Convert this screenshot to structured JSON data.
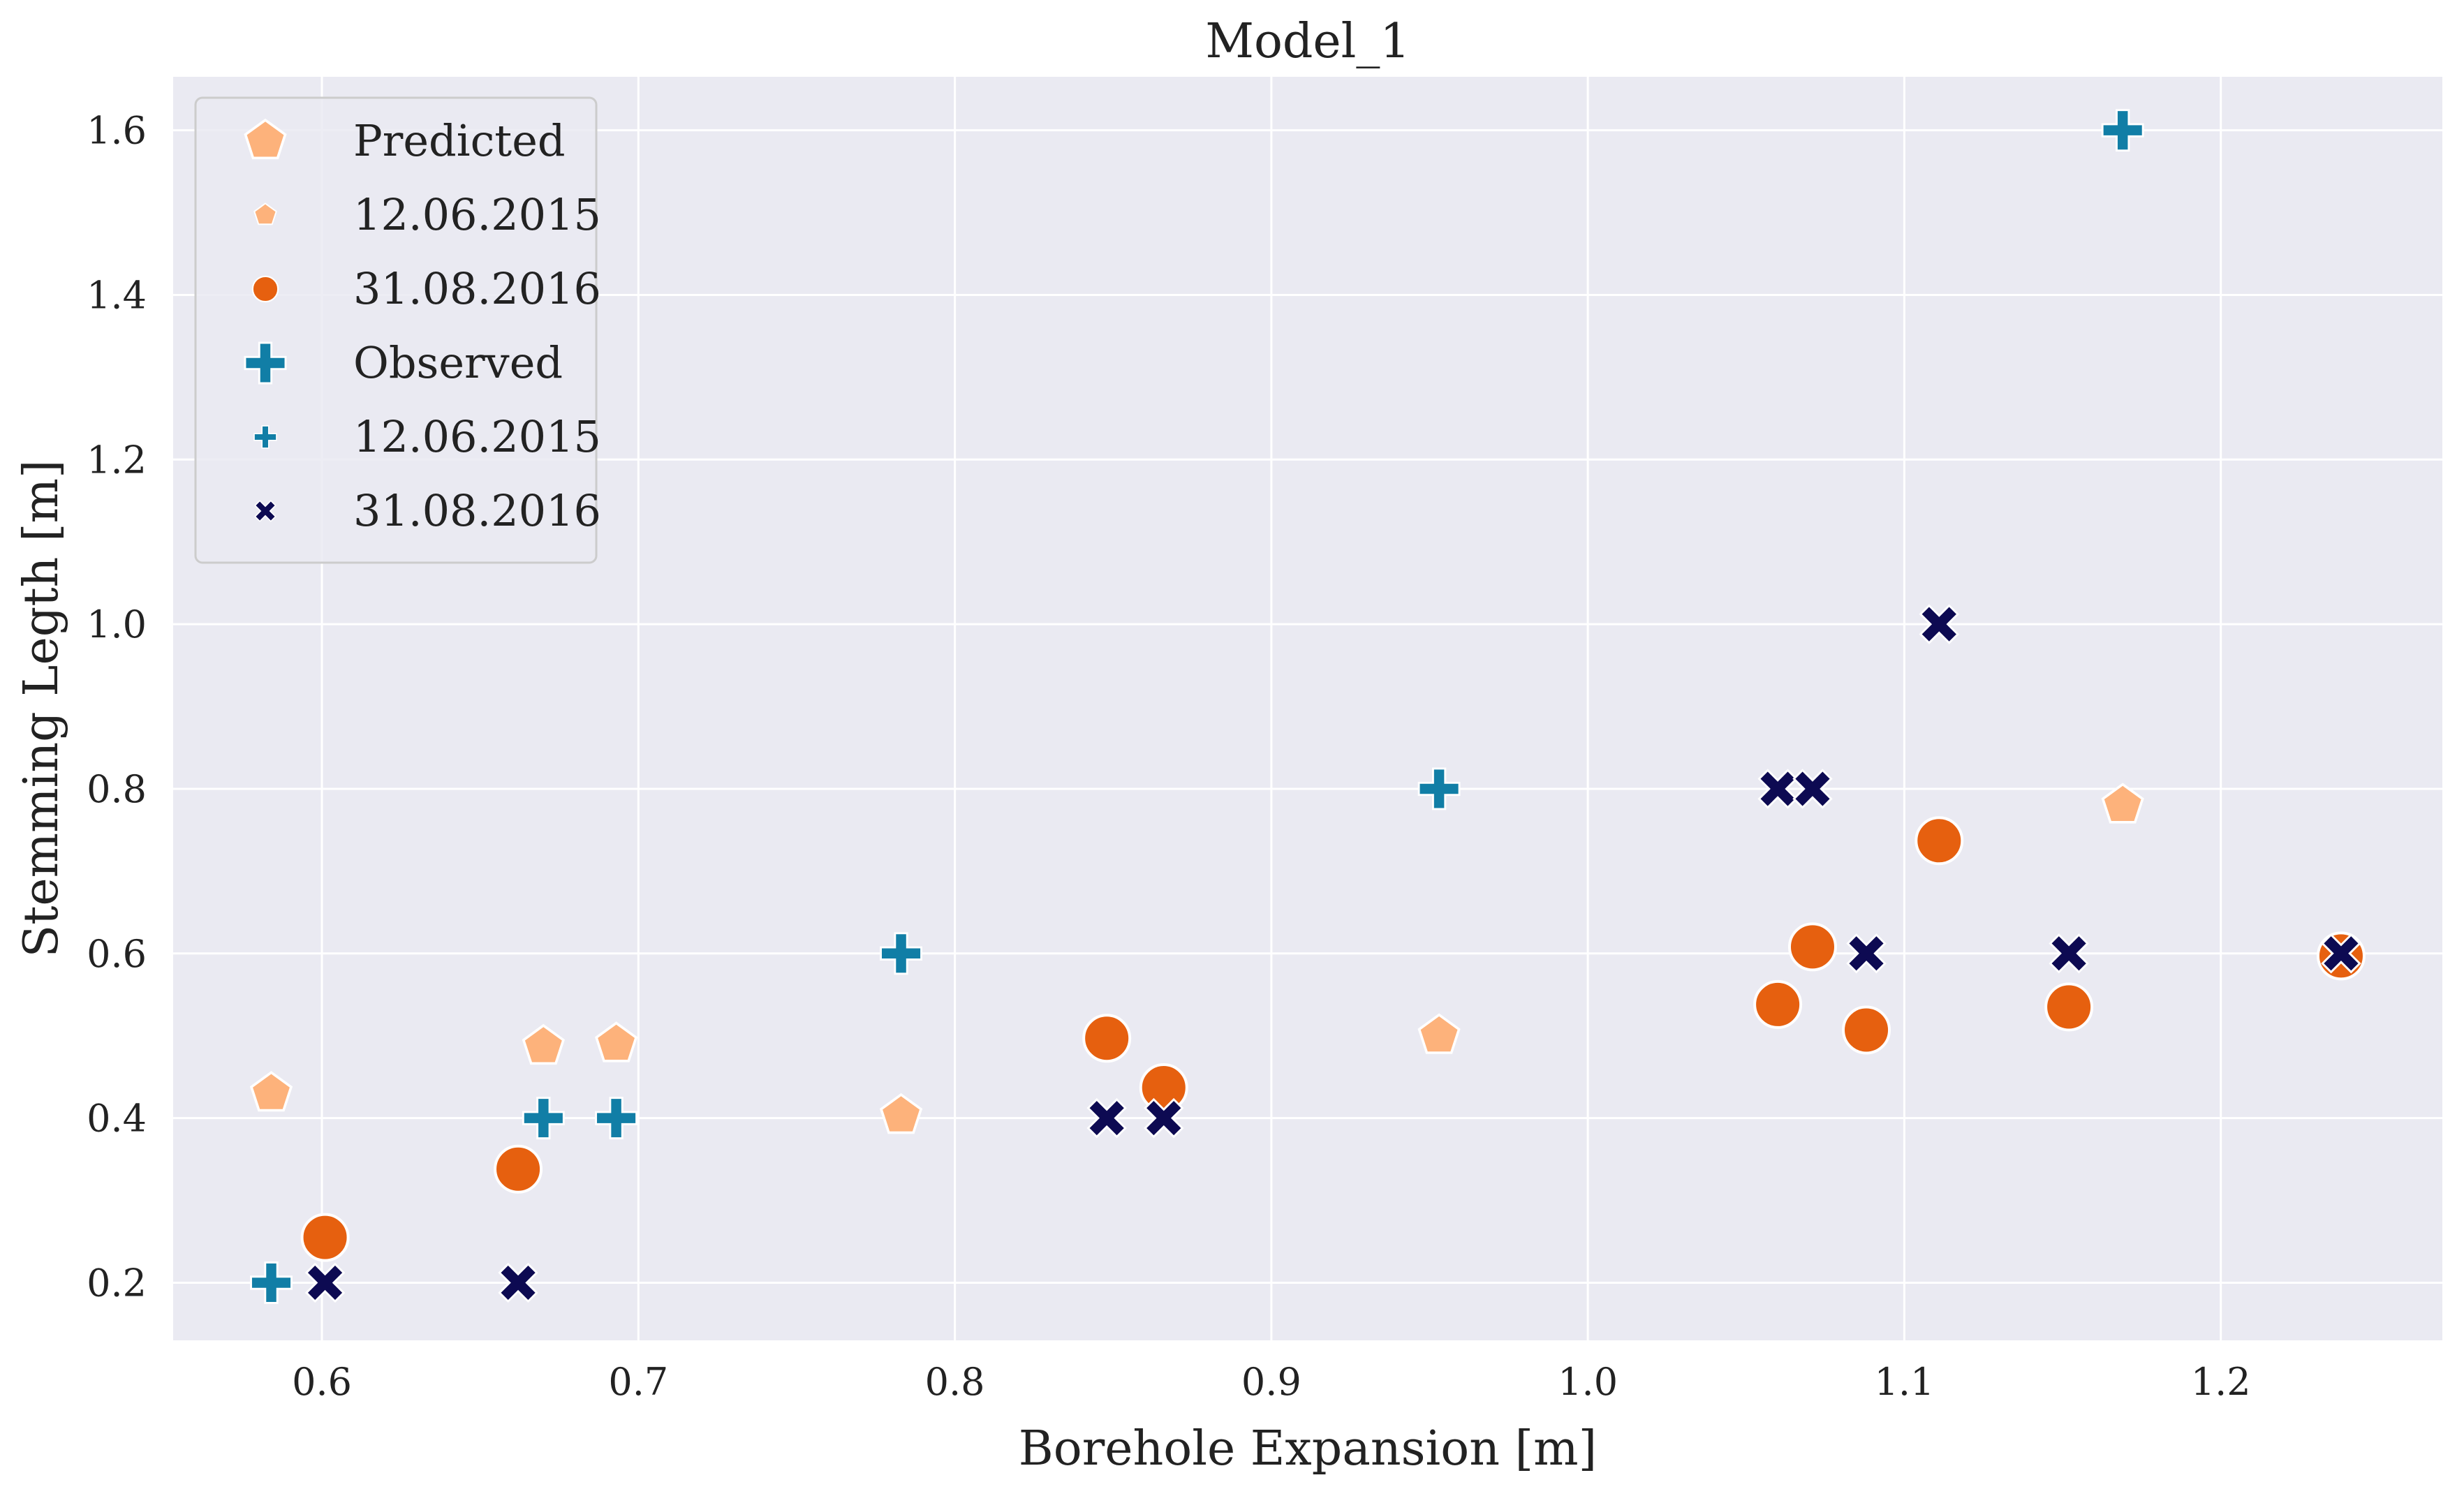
{
  "chart_data": {
    "type": "scatter",
    "title": "Model_1",
    "xlabel": "Borehole Expansion [m]",
    "ylabel": "Stemming Legth [m]",
    "xlim": [
      0.553,
      1.27
    ],
    "ylim": [
      0.13,
      1.665
    ],
    "xticks": [
      "0.6",
      "0.7",
      "0.8",
      "0.9",
      "1.0",
      "1.1",
      "1.2"
    ],
    "yticks": [
      "0.2",
      "0.4",
      "0.6",
      "0.8",
      "1.0",
      "1.2",
      "1.4",
      "1.6"
    ],
    "grid": true,
    "legend_position": "top-left",
    "legend": [
      {
        "label": "Predicted",
        "kind": "header",
        "marker": "pentagon",
        "color": "#fdb27b"
      },
      {
        "label": "12.06.2015",
        "kind": "entry",
        "marker": "pentagon",
        "color": "#fdb27b"
      },
      {
        "label": "31.08.2016",
        "kind": "entry",
        "marker": "circle",
        "color": "#e6600f"
      },
      {
        "label": "Observed",
        "kind": "header",
        "marker": "plus",
        "color": "#117ea6"
      },
      {
        "label": "12.06.2015",
        "kind": "entry",
        "marker": "plus",
        "color": "#117ea6"
      },
      {
        "label": "31.08.2016",
        "kind": "entry",
        "marker": "x",
        "color": "#0d0a52"
      }
    ],
    "series": [
      {
        "group": "Predicted",
        "date": "12.06.2015",
        "marker": "pentagon",
        "color": "#fdb27b",
        "points": [
          [
            0.584,
            0.43
          ],
          [
            0.67,
            0.487
          ],
          [
            0.693,
            0.49
          ],
          [
            0.783,
            0.403
          ],
          [
            0.953,
            0.5
          ],
          [
            1.169,
            0.78
          ]
        ]
      },
      {
        "group": "Predicted",
        "date": "31.08.2016",
        "marker": "circle",
        "color": "#e6600f",
        "points": [
          [
            0.601,
            0.255
          ],
          [
            0.662,
            0.338
          ],
          [
            0.848,
            0.497
          ],
          [
            0.866,
            0.437
          ],
          [
            1.06,
            0.538
          ],
          [
            1.071,
            0.608
          ],
          [
            1.088,
            0.507
          ],
          [
            1.111,
            0.737
          ],
          [
            1.152,
            0.535
          ],
          [
            1.238,
            0.597
          ]
        ]
      },
      {
        "group": "Observed",
        "date": "12.06.2015",
        "marker": "plus",
        "color": "#117ea6",
        "points": [
          [
            0.584,
            0.2
          ],
          [
            0.67,
            0.4
          ],
          [
            0.693,
            0.4
          ],
          [
            0.783,
            0.6
          ],
          [
            0.953,
            0.8
          ],
          [
            1.169,
            1.6
          ]
        ]
      },
      {
        "group": "Observed",
        "date": "31.08.2016",
        "marker": "x",
        "color": "#0d0a52",
        "points": [
          [
            0.601,
            0.2
          ],
          [
            0.662,
            0.2
          ],
          [
            0.848,
            0.4
          ],
          [
            0.866,
            0.4
          ],
          [
            1.06,
            0.8
          ],
          [
            1.071,
            0.8
          ],
          [
            1.088,
            0.6
          ],
          [
            1.111,
            1.0
          ],
          [
            1.152,
            0.6
          ],
          [
            1.238,
            0.6
          ]
        ]
      }
    ],
    "colors": {
      "plot_background": "#eaeaf2",
      "grid": "#ffffff",
      "legend_background": "#eaeaf2",
      "legend_border": "#cccccc"
    }
  }
}
